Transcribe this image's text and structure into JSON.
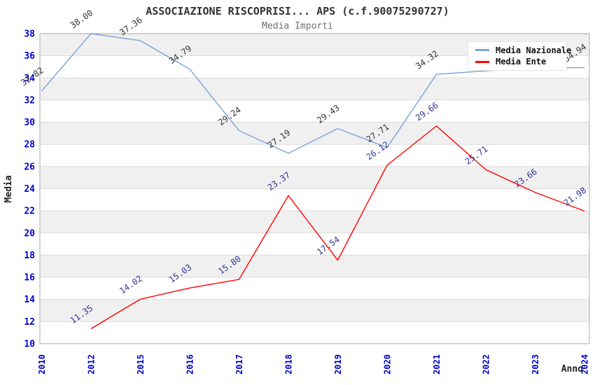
{
  "chart_data": {
    "type": "line",
    "title": "ASSOCIAZIONE RISCOPRISI... APS (c.f.90075290727)",
    "subtitle": "Media Importi",
    "xlabel": "Anno",
    "ylabel": "Media",
    "categories": [
      "2010",
      "2012",
      "2015",
      "2016",
      "2017",
      "2018",
      "2019",
      "2020",
      "2021",
      "2022",
      "2023",
      "2024"
    ],
    "ylim": [
      10,
      38
    ],
    "yticks": [
      10,
      12,
      14,
      16,
      18,
      20,
      22,
      24,
      26,
      28,
      30,
      32,
      34,
      36,
      38
    ],
    "grid": "horizontal gridlines every 2 units with alternating light-gray/white bands",
    "legend_position": "top-right-inside",
    "colors": {
      "tick_labels": "#0000CC",
      "band_fill": "#F0F0F0",
      "gridline": "#DCDCDC",
      "plot_border": "#AAAAAA",
      "title": "#333333",
      "subtitle": "#707070",
      "axis_title": "#222222"
    },
    "series": [
      {
        "name": "Media Nazionale",
        "color": "#79A4D9",
        "label_color": "#333333",
        "values": [
          32.82,
          38.0,
          37.36,
          34.79,
          29.24,
          27.19,
          29.43,
          27.71,
          34.32,
          34.64,
          34.88,
          34.94
        ],
        "point_labels": [
          "32.82",
          "38.00",
          "37.36",
          "34.79",
          "29.24",
          "27.19",
          "29.43",
          "27.71",
          "34.32",
          "",
          "",
          "34.94"
        ],
        "note": "2022 and 2023 values estimated from line position; their labels are hidden behind the legend box"
      },
      {
        "name": "Media Ente",
        "color": "#FF0000",
        "label_color": "#333399",
        "values": [
          null,
          11.35,
          14.02,
          15.03,
          15.8,
          23.37,
          17.54,
          26.12,
          29.66,
          25.71,
          23.66,
          21.98
        ],
        "point_labels": [
          "",
          "11.35",
          "14.02",
          "15.03",
          "15.80",
          "23.37",
          "17.54",
          "26.12",
          "29.66",
          "25.71",
          "23.66",
          "21.98"
        ]
      }
    ]
  }
}
